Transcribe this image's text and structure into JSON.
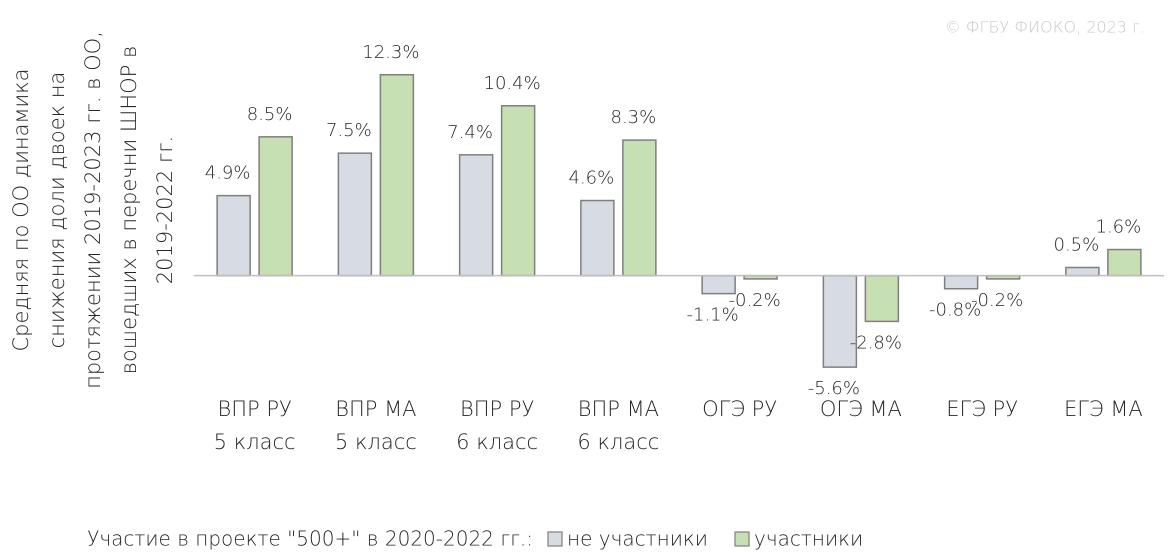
{
  "chart_data": {
    "type": "bar",
    "source": "© ФГБУ ФИОКО, 2023 г.",
    "y_label": [
      "Средняя по ОО динамика",
      "снижения доли двоек на",
      "протяжении 2019-2023 гг. в ОО,",
      "вошедших в перечни ШНОР в",
      "2019-2022 гг."
    ],
    "categories": [
      [
        "ВПР РУ",
        "5 класс"
      ],
      [
        "ВПР МА",
        "5 класс"
      ],
      [
        "ВПР РУ",
        "6 класс"
      ],
      [
        "ВПР МА",
        "6 класс"
      ],
      [
        "ОГЭ РУ"
      ],
      [
        "ОГЭ МА"
      ],
      [
        "ЕГЭ РУ"
      ],
      [
        "ЕГЭ МА"
      ]
    ],
    "legend_title": "Участие в проекте \"500+\" в 2020-2022 гг.:",
    "series": [
      {
        "name": "не участники",
        "color": "#d6dbe4",
        "values": [
          4.9,
          7.5,
          7.4,
          4.6,
          -1.1,
          -5.6,
          -0.8,
          0.5
        ],
        "value_labels": [
          "4.9%",
          "7.5%",
          "7.4%",
          "4.6%",
          "-1.1%",
          "-5.6%",
          "-0.8%",
          "0.5%"
        ]
      },
      {
        "name": "участники",
        "color": "#c6e0b4",
        "values": [
          8.5,
          12.3,
          10.4,
          8.3,
          -0.2,
          -2.8,
          -0.2,
          1.6
        ],
        "value_labels": [
          "8.5%",
          "12.3%",
          "10.4%",
          "8.3%",
          "-0.2%",
          "-2.8%",
          "-0.2%",
          "1.6%"
        ]
      }
    ],
    "ylim": [
      -7,
      14
    ]
  }
}
